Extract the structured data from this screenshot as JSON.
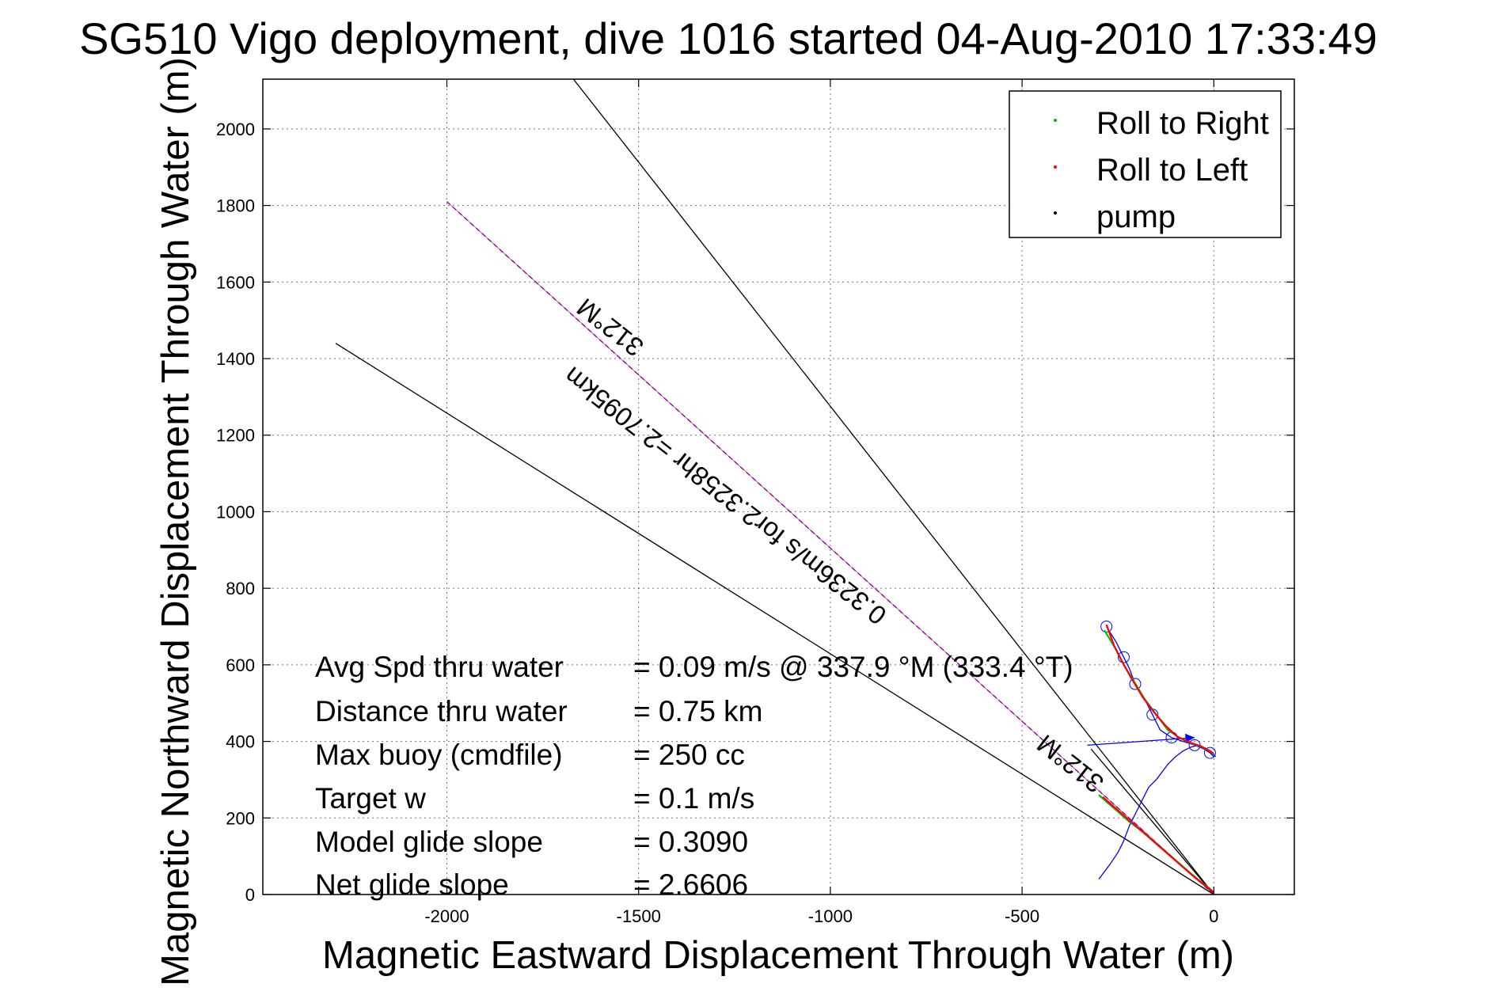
{
  "chart_data": {
    "type": "line",
    "title": "SG510 Vigo deployment, dive 1016 started 04-Aug-2010 17:33:49",
    "xlabel": "Magnetic Eastward Displacement Through Water (m)",
    "ylabel": "Magnetic Northward Displacement Through Water (m)",
    "xlim": [
      -2480,
      210
    ],
    "ylim": [
      0,
      2130
    ],
    "grid": true,
    "x_ticks": [
      -2000,
      -1500,
      -1000,
      -500,
      0
    ],
    "y_ticks": [
      0,
      200,
      400,
      600,
      800,
      1000,
      1200,
      1400,
      1600,
      1800,
      2000
    ],
    "legend": {
      "position": "top-right",
      "entries": [
        {
          "label": "Roll to Right",
          "color": "#00c000"
        },
        {
          "label": "Roll to Left",
          "color": "#ff0000"
        },
        {
          "label": "pump",
          "color": "#000000"
        }
      ]
    },
    "series": [
      {
        "name": "",
        "color": "#000000",
        "kind": "bearing_line",
        "x": [
          0,
          -1670
        ],
        "y": [
          0,
          2130
        ]
      },
      {
        "name": "",
        "color": "#000000",
        "kind": "bearing_line",
        "x": [
          0,
          -2290
        ],
        "y": [
          0,
          1440
        ]
      },
      {
        "name": "",
        "color": "#ff00ff",
        "kind": "course_line",
        "x": [
          0,
          -2000
        ],
        "y": [
          0,
          1810
        ]
      },
      {
        "name": "",
        "color": "#000000",
        "kind": "course_line_short",
        "x": [
          0,
          -320
        ],
        "y": [
          0,
          380
        ]
      },
      {
        "name": "",
        "color": "#0000ff",
        "kind": "drift_track",
        "x": [
          -300,
          -270,
          -250,
          -235,
          -220,
          -200,
          -185,
          -170,
          -150,
          -135,
          -120,
          -100,
          -80,
          -60,
          -40,
          -20,
          -5,
          5
        ],
        "y": [
          40,
          80,
          110,
          140,
          180,
          220,
          250,
          280,
          300,
          320,
          340,
          360,
          375,
          385,
          390,
          380,
          370,
          360
        ]
      },
      {
        "name": "",
        "color": "#0000ff",
        "kind": "surface_drift",
        "x": [
          -330,
          -50
        ],
        "y": [
          390,
          410
        ]
      },
      {
        "name": "",
        "color": "#0000ff",
        "kind": "loops",
        "x": [
          -280,
          -255,
          -235,
          -220,
          -205,
          -180,
          -160,
          -140,
          -110,
          -80,
          -50,
          -25,
          -10,
          0
        ],
        "y": [
          700,
          660,
          620,
          590,
          550,
          510,
          470,
          430,
          410,
          400,
          390,
          380,
          370,
          360
        ]
      },
      {
        "name": "",
        "color": "#00c000",
        "kind": "dive_path_right",
        "x": [
          -285,
          -255,
          -235,
          -210,
          -180,
          -150,
          -120,
          -90,
          -60,
          -30,
          -10,
          0
        ],
        "y": [
          690,
          640,
          600,
          560,
          510,
          470,
          430,
          410,
          395,
          385,
          375,
          365
        ]
      },
      {
        "name": "",
        "color": "#ff0000",
        "kind": "dive_path_left",
        "x": [
          -280,
          -260,
          -240,
          -215,
          -185,
          -155,
          -125,
          -95,
          -65,
          -35,
          -15,
          0
        ],
        "y": [
          705,
          650,
          610,
          565,
          515,
          475,
          440,
          412,
          398,
          388,
          378,
          368
        ]
      },
      {
        "name": "",
        "color": "#00c000",
        "kind": "track_right",
        "x": [
          -300,
          -260,
          -220,
          -180,
          -140,
          -100,
          -60,
          -30,
          -10,
          0
        ],
        "y": [
          260,
          225,
          190,
          160,
          125,
          90,
          55,
          30,
          15,
          5
        ]
      },
      {
        "name": "",
        "color": "#ff0000",
        "kind": "track_left",
        "x": [
          -290,
          -250,
          -210,
          -170,
          -130,
          -90,
          -50,
          -25,
          -5,
          0
        ],
        "y": [
          255,
          220,
          185,
          150,
          115,
          80,
          45,
          25,
          10,
          3
        ]
      }
    ],
    "annotations": [
      {
        "text": "312°M",
        "x": -1560,
        "y": 1500,
        "rotation": 218
      },
      {
        "text": "0.3236m/s for2.3258hr =2.7095km",
        "x": -1260,
        "y": 1060,
        "rotation": 218
      },
      {
        "text": "312°M",
        "x": -360,
        "y": 360,
        "rotation": 218
      }
    ]
  },
  "stats": [
    {
      "label": "Avg Spd thru water",
      "value": "=  0.09 m/s @  337.9 °M (333.4 °T)"
    },
    {
      "label": "Distance thru water",
      "value": "=  0.75 km"
    },
    {
      "label": "Max buoy (cmdfile)",
      "value": "= 250 cc"
    },
    {
      "label": "Target w",
      "value": "= 0.1 m/s"
    },
    {
      "label": "Model glide slope",
      "value": "= 0.3090"
    },
    {
      "label": "Net glide slope",
      "value": "= 2.6606"
    }
  ]
}
